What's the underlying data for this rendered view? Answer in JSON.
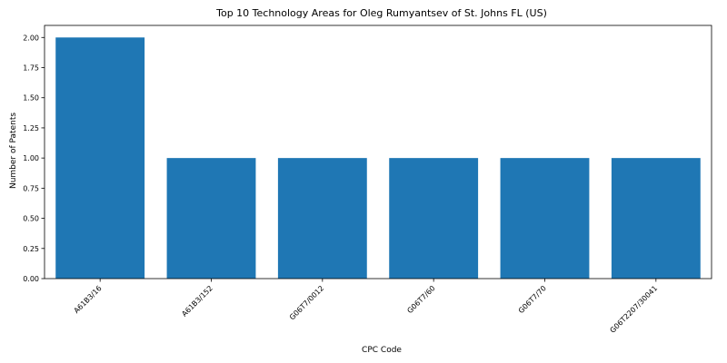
{
  "chart_data": {
    "type": "bar",
    "title": "Top 10 Technology Areas for Oleg Rumyantsev of St. Johns FL (US)",
    "xlabel": "CPC Code",
    "ylabel": "Number of Patents",
    "categories": [
      "A61B3/16",
      "A61B3/152",
      "G06T7/0012",
      "G06T7/60",
      "G06T7/70",
      "G06T2207/30041"
    ],
    "values": [
      2,
      1,
      1,
      1,
      1,
      1
    ],
    "ylim": [
      0,
      2.1
    ],
    "yticks": [
      "0.00",
      "0.25",
      "0.50",
      "0.75",
      "1.00",
      "1.25",
      "1.50",
      "1.75",
      "2.00"
    ],
    "grid": false,
    "bar_color": "#1f77b4"
  }
}
